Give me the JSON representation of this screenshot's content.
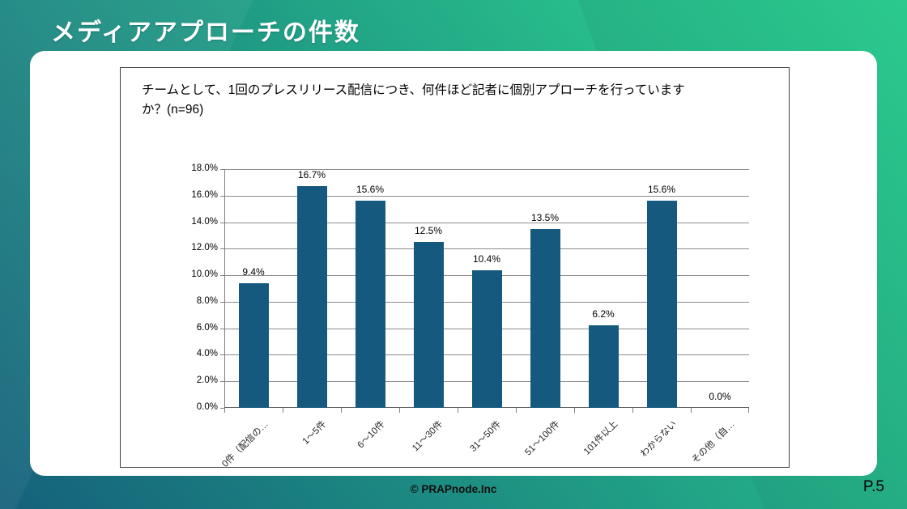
{
  "slide": {
    "title": "メディアアプローチの件数",
    "footer": "© PRAPnode.Inc",
    "page_number": "P.5"
  },
  "colors": {
    "bar": "#16597e",
    "gridline": "#8c8c8c",
    "background_gradient": [
      "#2ed494",
      "#1f9884",
      "#15617b"
    ]
  },
  "chart_data": {
    "type": "bar",
    "title": "チームとして、1回のプレスリリース配信につき、何件ほど記者に個別アプローチを行っていますか？(n=96)",
    "categories": [
      "0件（配信の…",
      "1～5件",
      "6～10件",
      "11～30件",
      "31～50件",
      "51～100件",
      "101件以上",
      "わからない",
      "その他（自…"
    ],
    "values": [
      9.4,
      16.7,
      15.6,
      12.5,
      10.4,
      13.5,
      6.2,
      15.6,
      0.0
    ],
    "value_labels": [
      "9.4%",
      "16.7%",
      "15.6%",
      "12.5%",
      "10.4%",
      "13.5%",
      "6.2%",
      "15.6%",
      "0.0%"
    ],
    "xlabel": "",
    "ylabel": "",
    "ylim": [
      0,
      18
    ],
    "ytick_step": 2,
    "ytick_labels": [
      "0.0%",
      "2.0%",
      "4.0%",
      "6.0%",
      "8.0%",
      "10.0%",
      "12.0%",
      "14.0%",
      "16.0%",
      "18.0%"
    ],
    "grid": true,
    "legend": "none"
  }
}
